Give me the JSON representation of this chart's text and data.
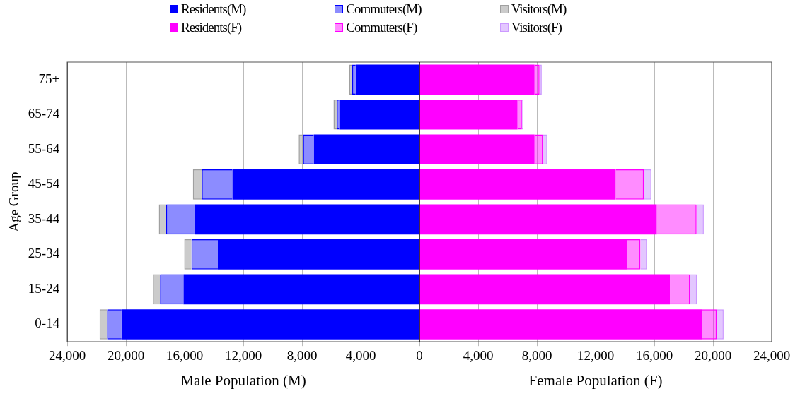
{
  "chart_data": {
    "type": "bar",
    "orientation": "horizontal",
    "stacked": true,
    "ylabel": "Age Group",
    "annotations": [
      "Male Population (M)",
      "Female Population (F)"
    ],
    "categories": [
      "75+",
      "65-74",
      "55-64",
      "45-54",
      "35-44",
      "25-34",
      "15-24",
      "0-14"
    ],
    "series": [
      {
        "name": "Residents(M)",
        "color": "#0000ff",
        "values": [
          -4350,
          -5470,
          -7200,
          -12750,
          -15300,
          -13740,
          -16080,
          -20300
        ]
      },
      {
        "name": "Commuters(M)",
        "color": "#0000ff",
        "values": [
          -240,
          -170,
          -740,
          -2090,
          -1970,
          -1800,
          -1600,
          -990
        ]
      },
      {
        "name": "Visitors(M)",
        "color": "#a0a0a0",
        "values": [
          -200,
          -220,
          -290,
          -600,
          -490,
          -490,
          -490,
          -510
        ]
      },
      {
        "name": "Residents(F)",
        "color": "#ff00ff",
        "values": [
          7840,
          6680,
          7840,
          13370,
          16170,
          14150,
          17060,
          19270
        ]
      },
      {
        "name": "Commuters(F)",
        "color": "#ff00ff",
        "values": [
          340,
          300,
          570,
          1920,
          2710,
          910,
          1370,
          980
        ]
      },
      {
        "name": "Visitors(F)",
        "color": "#cc99ff",
        "values": [
          150,
          80,
          300,
          510,
          490,
          440,
          470,
          470
        ]
      }
    ],
    "xlim": [
      -24000,
      24000
    ],
    "xticks": [
      {
        "value": -24000,
        "label": "24,000"
      },
      {
        "value": -20000,
        "label": "20,000"
      },
      {
        "value": -16000,
        "label": "16,000"
      },
      {
        "value": -12000,
        "label": "12,000"
      },
      {
        "value": -8000,
        "label": "8,000"
      },
      {
        "value": -4000,
        "label": "4,000"
      },
      0,
      {
        "value": 4000,
        "label": "4,000"
      },
      {
        "value": 8000,
        "label": "8,000"
      },
      {
        "value": 12000,
        "label": "12,000"
      },
      {
        "value": 16000,
        "label": "16,000"
      },
      {
        "value": 20000,
        "label": "20,000"
      },
      {
        "value": 24000,
        "label": "24,000"
      }
    ],
    "grid": "x",
    "legend": "top"
  }
}
